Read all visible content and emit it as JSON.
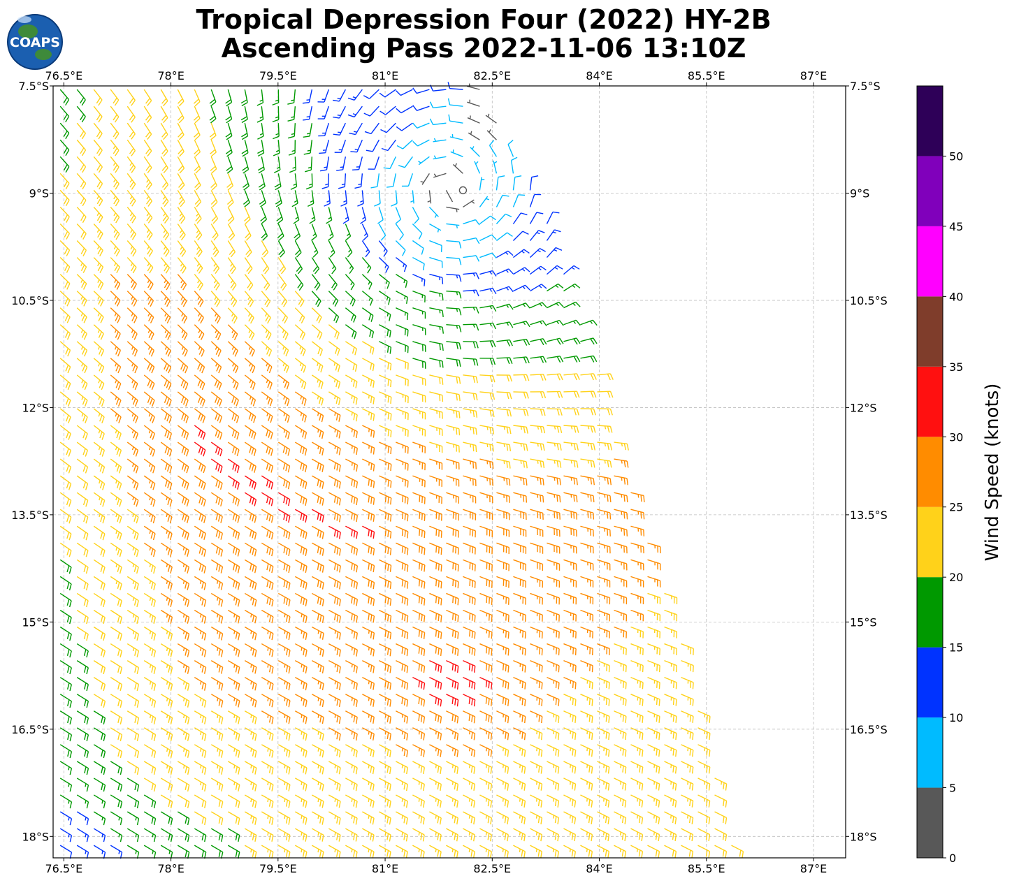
{
  "header": {
    "title_line1": "Tropical Depression Four (2022) HY-2B",
    "title_line2": "Ascending Pass 2022-11-06 13:10Z"
  },
  "logo": {
    "text": "COAPS",
    "icon": "globe-icon"
  },
  "map": {
    "lon_range": [
      76.35,
      87.45
    ],
    "lat_range": [
      -18.3,
      -7.5
    ],
    "lon_ticks": [
      {
        "value": 76.5,
        "label": "76.5°E"
      },
      {
        "value": 78.0,
        "label": "78°E"
      },
      {
        "value": 79.5,
        "label": "79.5°E"
      },
      {
        "value": 81.0,
        "label": "81°E"
      },
      {
        "value": 82.5,
        "label": "82.5°E"
      },
      {
        "value": 84.0,
        "label": "84°E"
      },
      {
        "value": 85.5,
        "label": "85.5°E"
      },
      {
        "value": 87.0,
        "label": "87°E"
      }
    ],
    "lat_ticks": [
      {
        "value": -7.5,
        "label": "7.5°S"
      },
      {
        "value": -9.0,
        "label": "9°S"
      },
      {
        "value": -10.5,
        "label": "10.5°S"
      },
      {
        "value": -12.0,
        "label": "12°S"
      },
      {
        "value": -13.5,
        "label": "13.5°S"
      },
      {
        "value": -15.0,
        "label": "15°S"
      },
      {
        "value": -16.5,
        "label": "16.5°S"
      },
      {
        "value": -18.0,
        "label": "18°S"
      }
    ],
    "gridlines": true,
    "storm_center": {
      "lon": 81.8,
      "lat": -9.1
    },
    "swath_right_edge": [
      {
        "lat": -7.5,
        "lon": 82.3
      },
      {
        "lat": -9.0,
        "lon": 83.1
      },
      {
        "lat": -10.5,
        "lon": 83.7
      },
      {
        "lat": -12.0,
        "lon": 84.1
      },
      {
        "lat": -13.5,
        "lon": 84.6
      },
      {
        "lat": -15.0,
        "lon": 85.1
      },
      {
        "lat": -16.5,
        "lon": 85.5
      },
      {
        "lat": -18.3,
        "lon": 85.9
      }
    ]
  },
  "colorbar": {
    "label": "Wind Speed (knots)",
    "bins": [
      {
        "min": 0,
        "max": 5,
        "color": "#585858"
      },
      {
        "min": 5,
        "max": 10,
        "color": "#00bbff"
      },
      {
        "min": 10,
        "max": 15,
        "color": "#0033ff"
      },
      {
        "min": 15,
        "max": 20,
        "color": "#009900"
      },
      {
        "min": 20,
        "max": 25,
        "color": "#ffd21a"
      },
      {
        "min": 25,
        "max": 30,
        "color": "#ff8c00"
      },
      {
        "min": 30,
        "max": 35,
        "color": "#ff1010"
      },
      {
        "min": 35,
        "max": 40,
        "color": "#7f3d2b"
      },
      {
        "min": 40,
        "max": 45,
        "color": "#ff00ff"
      },
      {
        "min": 45,
        "max": 50,
        "color": "#8000bb"
      },
      {
        "min": 50,
        "max": 55,
        "color": "#2e0058"
      }
    ],
    "tick_labels": [
      "0",
      "5",
      "10",
      "15",
      "20",
      "25",
      "30",
      "35",
      "40",
      "45",
      "50"
    ]
  }
}
